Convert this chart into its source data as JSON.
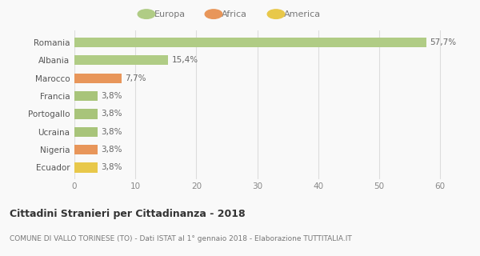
{
  "categories": [
    "Ecuador",
    "Nigeria",
    "Ucraina",
    "Portogallo",
    "Francia",
    "Marocco",
    "Albania",
    "Romania"
  ],
  "values": [
    3.8,
    3.8,
    3.8,
    3.8,
    3.8,
    7.7,
    15.4,
    57.7
  ],
  "labels": [
    "3,8%",
    "3,8%",
    "3,8%",
    "3,8%",
    "3,8%",
    "7,7%",
    "15,4%",
    "57,7%"
  ],
  "colors": [
    "#e8c84a",
    "#e8965a",
    "#a8c47a",
    "#a8c47a",
    "#a8c47a",
    "#e8965a",
    "#b0cc85",
    "#b0cc85"
  ],
  "legend": [
    {
      "label": "Europa",
      "color": "#b0cc85"
    },
    {
      "label": "Africa",
      "color": "#e8965a"
    },
    {
      "label": "America",
      "color": "#e8c84a"
    }
  ],
  "xlim": [
    0,
    63
  ],
  "xticks": [
    0,
    10,
    20,
    30,
    40,
    50,
    60
  ],
  "title": "Cittadini Stranieri per Cittadinanza - 2018",
  "subtitle": "COMUNE DI VALLO TORINESE (TO) - Dati ISTAT al 1° gennaio 2018 - Elaborazione TUTTITALIA.IT",
  "background_color": "#f9f9f9",
  "grid_color": "#dddddd"
}
